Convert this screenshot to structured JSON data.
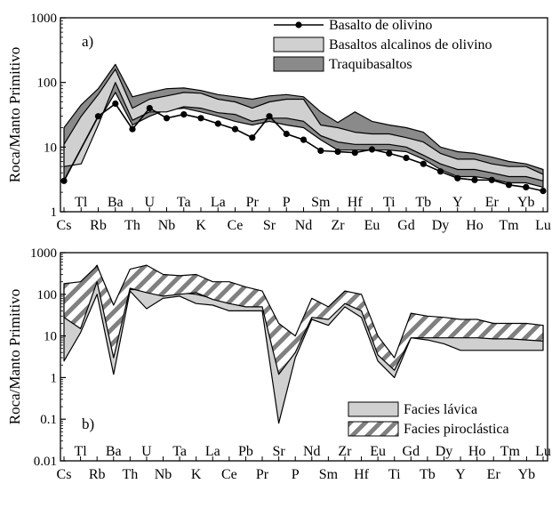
{
  "chart_data": [
    {
      "type": "line",
      "panel_label": "a)",
      "ylabel": "Roca/Manto Primitivo",
      "yscale": "log",
      "ylim": [
        1,
        1000
      ],
      "yticks": [
        "1",
        "10",
        "100",
        "1000"
      ],
      "legend_position": "top-right",
      "legend": [
        {
          "label": "Basalto de olivino",
          "kind": "line-marker"
        },
        {
          "label": "Basaltos alcalinos de olivino",
          "kind": "band",
          "color": "#d0d0d0"
        },
        {
          "label": "Traquibasaltos",
          "kind": "band",
          "color": "#8a8a8a"
        }
      ],
      "x": [
        "Cs",
        "Tl",
        "Rb",
        "Ba",
        "Th",
        "U",
        "Nb",
        "Ta",
        "K",
        "La",
        "Ce",
        "Pr",
        "Sr",
        "P",
        "Nd",
        "Sm",
        "Zr",
        "Hf",
        "Eu",
        "Ti",
        "Gd",
        "Tb",
        "Dy",
        "Y",
        "Ho",
        "Er",
        "Tm",
        "Yb",
        "Lu"
      ],
      "series": [
        {
          "name": "Traquibasaltos",
          "kind": "band",
          "color": "#8a8a8a",
          "upper": [
            20,
            45,
            80,
            190,
            60,
            70,
            80,
            82,
            75,
            65,
            60,
            55,
            62,
            65,
            60,
            35,
            24,
            35,
            25,
            22,
            20,
            17,
            10,
            8.5,
            8,
            7,
            6,
            5.5,
            4.5
          ],
          "lower": [
            3,
            10,
            25,
            70,
            22,
            30,
            38,
            40,
            35,
            30,
            25,
            22,
            25,
            22,
            20,
            13,
            9,
            9,
            9,
            9,
            8.5,
            6.5,
            4.5,
            3.5,
            3.5,
            3.2,
            2.8,
            2.8,
            2.4
          ]
        },
        {
          "name": "Basaltos alcalinos de olivino",
          "kind": "band",
          "color": "#d0d0d0",
          "upper": [
            11,
            30,
            65,
            160,
            40,
            55,
            62,
            70,
            68,
            55,
            50,
            40,
            50,
            55,
            55,
            22,
            20,
            17,
            16,
            16,
            14,
            12,
            8,
            6.5,
            6.5,
            5.5,
            5,
            5,
            3.8
          ],
          "lower": [
            5,
            5.5,
            22,
            100,
            26,
            35,
            35,
            42,
            40,
            34,
            32,
            25,
            28,
            28,
            25,
            15,
            12,
            11,
            11,
            11,
            10,
            7.5,
            5.5,
            4.5,
            4.5,
            4,
            3.5,
            3.5,
            3
          ]
        },
        {
          "name": "Basalto de olivino",
          "kind": "line-marker",
          "values": [
            3,
            null,
            30,
            47,
            19,
            40,
            28,
            32,
            28,
            23,
            19,
            14,
            30,
            16,
            13,
            8.8,
            8.5,
            8.2,
            9.2,
            8,
            6.8,
            5.5,
            4.2,
            3.3,
            3.1,
            3.1,
            2.6,
            2.4,
            2.1
          ]
        }
      ]
    },
    {
      "type": "area",
      "panel_label": "b)",
      "ylabel": "Roca/Manto Primitivo",
      "yscale": "log",
      "ylim": [
        0.01,
        1000
      ],
      "yticks": [
        "0.01",
        "0.1",
        "1",
        "10",
        "100",
        "1000"
      ],
      "legend_position": "bottom-right",
      "legend": [
        {
          "label": "Facies lávica",
          "kind": "band",
          "color": "#d0d0d0"
        },
        {
          "label": "Facies piroclástica",
          "kind": "hatched-band"
        }
      ],
      "x": [
        "Cs",
        "Tl",
        "Rb",
        "Ba",
        "Th",
        "U",
        "Nb",
        "Ta",
        "K",
        "La",
        "Ce",
        "Pb",
        "Pr",
        "Sr",
        "P",
        "Nd",
        "Sm",
        "Zr",
        "Hf",
        "Eu",
        "Ti",
        "Gd",
        "Tb",
        "Dy",
        "Y",
        "Ho",
        "Er",
        "Tm",
        "Yb",
        "Lu"
      ],
      "series": [
        {
          "name": "Facies lávica",
          "kind": "band",
          "color": "#d0d0d0",
          "upper": [
            150,
            150,
            500,
            30,
            130,
            130,
            110,
            110,
            100,
            80,
            60,
            60,
            60,
            5,
            6,
            40,
            30,
            80,
            40,
            5,
            2,
            30,
            25,
            20,
            25,
            20,
            20,
            18,
            18,
            18
          ],
          "lower": [
            2.5,
            12,
            100,
            1.2,
            120,
            45,
            80,
            90,
            60,
            55,
            40,
            40,
            40,
            0.08,
            3,
            25,
            18,
            50,
            28,
            2.5,
            1,
            9,
            8,
            6.5,
            4.5,
            4.5,
            4.5,
            4.5,
            4.5,
            4.5
          ]
        },
        {
          "name": "Facies piroclástica",
          "kind": "hatched-band",
          "upper": [
            180,
            200,
            480,
            55,
            400,
            500,
            300,
            280,
            300,
            200,
            200,
            150,
            120,
            20,
            10,
            80,
            50,
            120,
            100,
            10,
            3,
            35,
            30,
            28,
            25,
            25,
            20,
            20,
            20,
            18
          ],
          "lower": [
            28,
            15,
            200,
            3,
            140,
            110,
            90,
            100,
            110,
            75,
            60,
            50,
            50,
            1.2,
            4,
            28,
            25,
            60,
            40,
            3.5,
            1.5,
            9,
            9,
            9,
            9,
            9,
            8.5,
            8.5,
            8,
            7.5
          ]
        }
      ]
    }
  ]
}
